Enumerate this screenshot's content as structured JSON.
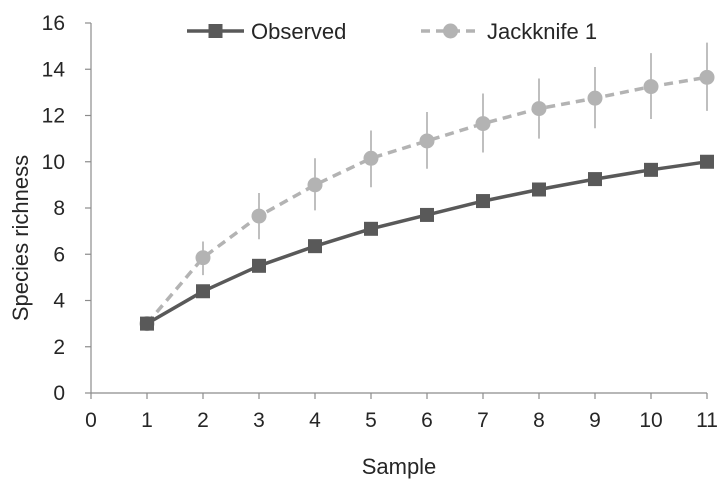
{
  "chart_data": {
    "type": "line",
    "xlabel": "Sample",
    "ylabel": "Species richness",
    "xlim": [
      0,
      11
    ],
    "ylim": [
      0,
      16
    ],
    "xticks": [
      0,
      1,
      2,
      3,
      4,
      5,
      6,
      7,
      8,
      9,
      10,
      11
    ],
    "yticks": [
      0,
      2,
      4,
      6,
      8,
      10,
      12,
      14,
      16
    ],
    "grid": false,
    "legend_position": "top",
    "x": [
      1,
      2,
      3,
      4,
      5,
      6,
      7,
      8,
      9,
      10,
      11
    ],
    "series": [
      {
        "name": "Observed",
        "color": "#595959",
        "line_style": "solid",
        "marker": "square",
        "values": [
          3.0,
          4.4,
          5.5,
          6.35,
          7.1,
          7.7,
          8.3,
          8.8,
          9.25,
          9.65,
          10.0
        ]
      },
      {
        "name": "Jackknife 1",
        "color": "#b3b3b3",
        "line_style": "dashed",
        "marker": "circle",
        "values": [
          3.0,
          5.85,
          7.65,
          9.0,
          10.15,
          10.9,
          11.65,
          12.3,
          12.75,
          13.25,
          13.65
        ],
        "error": [
          [
            3.0,
            3.0
          ],
          [
            5.1,
            6.55
          ],
          [
            6.65,
            8.65
          ],
          [
            7.9,
            10.15
          ],
          [
            8.9,
            11.35
          ],
          [
            9.7,
            12.15
          ],
          [
            10.4,
            12.95
          ],
          [
            11.0,
            13.6
          ],
          [
            11.45,
            14.1
          ],
          [
            11.85,
            14.7
          ],
          [
            12.2,
            15.15
          ]
        ]
      }
    ]
  }
}
